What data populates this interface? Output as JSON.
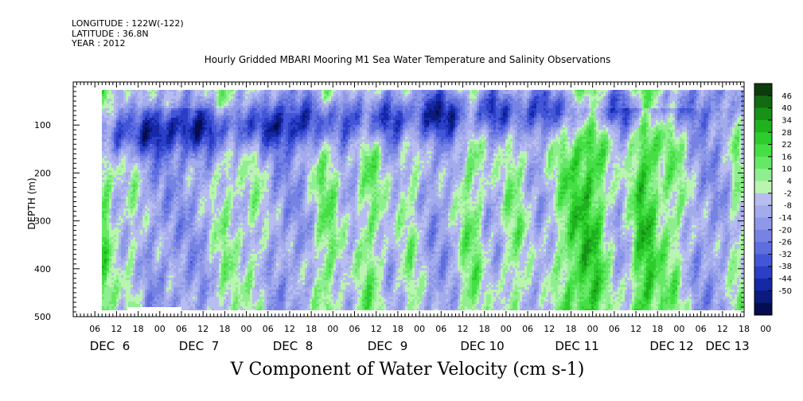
{
  "header": {
    "longitude": "LONGITUDE : 122W(-122)",
    "latitude": "LATITUDE : 36.8N",
    "year": "YEAR : 2012"
  },
  "chart_data": {
    "type": "heatmap",
    "title": "Hourly Gridded MBARI Mooring M1 Sea Water Temperature and Salinity Observations",
    "xlabel": "V Component of Water Velocity (cm s-1)",
    "ylabel": "DEPTH (m)",
    "ylim": [
      500,
      10
    ],
    "yticks": [
      100,
      200,
      300,
      400,
      500
    ],
    "xlim_hours": [
      0,
      186
    ],
    "hour_tick_labels": [
      "06",
      "12",
      "18",
      "00",
      "06",
      "12",
      "18",
      "00",
      "06",
      "12",
      "18",
      "00",
      "06",
      "12",
      "18",
      "00",
      "06",
      "12",
      "18",
      "00",
      "06",
      "12",
      "18",
      "00",
      "06",
      "12",
      "18",
      "00",
      "06",
      "12",
      "18",
      "00"
    ],
    "day_labels": [
      "DEC  6",
      "DEC  7",
      "DEC  8",
      "DEC  9",
      "DEC 10",
      "DEC 11",
      "DEC 12",
      "DEC 13"
    ],
    "colorbar": {
      "tick_labels": [
        "46",
        "40",
        "34",
        "28",
        "22",
        "16",
        "10",
        "4",
        "-2",
        "-8",
        "-14",
        "-20",
        "-26",
        "-32",
        "-38",
        "-44",
        "-50"
      ],
      "colors": [
        "#0c3c0c",
        "#126b12",
        "#179117",
        "#1fb21f",
        "#2ccd2c",
        "#45df45",
        "#66e866",
        "#8fef8f",
        "#b9f4b0",
        "#b7bdf0",
        "#a3abec",
        "#8d98e8",
        "#7683e3",
        "#5f6edf",
        "#4456d8",
        "#2a3ec7",
        "#1528a8",
        "#0b1a7c",
        "#050d50"
      ]
    },
    "data_extent": {
      "x_hours": [
        6,
        192
      ],
      "depth": [
        25,
        490
      ]
    },
    "missing": [
      {
        "x_hours": [
          15,
          30
        ],
        "depth": [
          480,
          490
        ]
      }
    ]
  }
}
